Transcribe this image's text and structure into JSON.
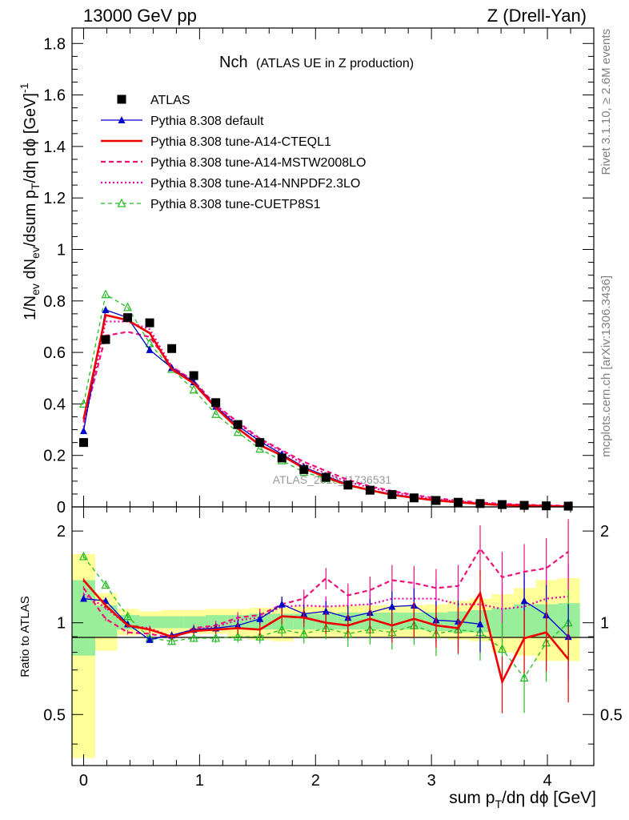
{
  "header": {
    "left": "13000 GeV pp",
    "right": "Z (Drell-Yan)"
  },
  "side_labels": {
    "rivet": "Rivet 3.1.10, ≥ 2.6M events",
    "mcplots": "mcplots.cern.ch [arXiv:1306.3436]"
  },
  "colors": {
    "data": "#000000",
    "default": "#0000cc",
    "cteql1": "#ee0000",
    "mstw": "#ee1177",
    "nnpdf": "#ee00aa",
    "cuetp": "#22bb22",
    "band_inner": "#99ee99",
    "band_outer": "#ffff99"
  },
  "chart_data": [
    {
      "type": "line",
      "title": "Nch",
      "subtitle": "(ATLAS UE in Z production)",
      "ylabel": "1/N_ev dN_ev/dsum p_T/dη dϕ [GeV]^-1",
      "xlabel": "sum p_T/dη dϕ [GeV]",
      "watermark": "ATLAS_2019_I1736531",
      "xlim": [
        -0.1,
        4.4
      ],
      "ylim": [
        0,
        1.86
      ],
      "yticks": [
        "0",
        "0.2",
        "0.4",
        "0.6",
        "0.8",
        "1",
        "1.2",
        "1.4",
        "1.6",
        "1.8"
      ],
      "xticks": [
        "0",
        "1",
        "2",
        "3",
        "4"
      ],
      "legend_position": "top-left",
      "x": [
        0,
        0.19,
        0.38,
        0.57,
        0.76,
        0.95,
        1.14,
        1.33,
        1.52,
        1.71,
        1.9,
        2.09,
        2.28,
        2.47,
        2.66,
        2.85,
        3.04,
        3.23,
        3.42,
        3.61,
        3.8,
        3.99,
        4.18
      ],
      "series": [
        {
          "name": "ATLAS",
          "key": "data",
          "values": [
            0.25,
            0.65,
            0.735,
            0.715,
            0.615,
            0.51,
            0.405,
            0.32,
            0.25,
            0.19,
            0.145,
            0.115,
            0.085,
            0.065,
            0.048,
            0.035,
            0.025,
            0.018,
            0.013,
            0.009,
            0.006,
            0.004,
            0.003
          ]
        },
        {
          "name": "Pythia 8.308 default",
          "key": "default",
          "values": [
            0.295,
            0.765,
            0.735,
            0.61,
            0.54,
            0.485,
            0.39,
            0.315,
            0.255,
            0.205,
            0.155,
            0.12,
            0.088,
            0.066,
            0.05,
            0.037,
            0.024,
            0.016,
            0.011,
            0.008,
            0.005,
            0.003,
            0.002
          ]
        },
        {
          "name": "Pythia 8.308 tune-A14-CTEQL1",
          "key": "cteql1",
          "values": [
            0.34,
            0.745,
            0.725,
            0.675,
            0.535,
            0.48,
            0.385,
            0.305,
            0.24,
            0.2,
            0.15,
            0.115,
            0.085,
            0.065,
            0.047,
            0.035,
            0.025,
            0.018,
            0.012,
            0.007,
            0.005,
            0.003,
            0.002
          ]
        },
        {
          "name": "Pythia 8.308 tune-A14-MSTW2008LO",
          "key": "mstw",
          "values": [
            0.33,
            0.665,
            0.68,
            0.66,
            0.545,
            0.49,
            0.395,
            0.33,
            0.265,
            0.22,
            0.175,
            0.14,
            0.105,
            0.08,
            0.062,
            0.046,
            0.034,
            0.024,
            0.017,
            0.012,
            0.008,
            0.006,
            0.004
          ]
        },
        {
          "name": "Pythia 8.308 tune-A14-NNPDF2.3LO",
          "key": "nnpdf",
          "values": [
            0.31,
            0.72,
            0.72,
            0.69,
            0.545,
            0.485,
            0.39,
            0.325,
            0.26,
            0.215,
            0.165,
            0.13,
            0.097,
            0.075,
            0.058,
            0.042,
            0.03,
            0.021,
            0.015,
            0.01,
            0.007,
            0.005,
            0.003
          ]
        },
        {
          "name": "Pythia 8.308 tune-CUETP8S1",
          "key": "cuetp",
          "values": [
            0.4,
            0.825,
            0.775,
            0.635,
            0.535,
            0.455,
            0.36,
            0.29,
            0.225,
            0.18,
            0.135,
            0.11,
            0.082,
            0.062,
            0.045,
            0.035,
            0.023,
            0.017,
            0.012,
            0.007,
            0.004,
            0.003,
            0.002
          ]
        }
      ]
    },
    {
      "type": "line",
      "ylabel": "Ratio to ATLAS",
      "xlim": [
        -0.1,
        4.4
      ],
      "ylim": [
        0.34,
        2.4
      ],
      "yticks": [
        "0.5",
        "1",
        "2"
      ],
      "x": [
        0,
        0.19,
        0.38,
        0.57,
        0.76,
        0.95,
        1.14,
        1.33,
        1.52,
        1.71,
        1.9,
        2.09,
        2.28,
        2.47,
        2.66,
        2.85,
        3.04,
        3.23,
        3.42,
        3.61,
        3.8,
        3.99,
        4.18
      ],
      "bands": {
        "edges": [
          -0.1,
          0.1,
          0.29,
          0.48,
          0.67,
          0.86,
          1.05,
          1.24,
          1.43,
          1.62,
          1.81,
          2.0,
          2.19,
          2.38,
          2.57,
          2.76,
          2.95,
          3.14,
          3.33,
          3.52,
          3.71,
          3.9,
          4.09,
          4.28
        ],
        "inner_lo": [
          0.78,
          0.9,
          0.95,
          0.96,
          0.96,
          0.96,
          0.96,
          0.96,
          0.95,
          0.95,
          0.95,
          0.95,
          0.95,
          0.95,
          0.95,
          0.95,
          0.94,
          0.93,
          0.93,
          0.9,
          0.9,
          0.9,
          0.9
        ],
        "inner_hi": [
          1.38,
          1.14,
          1.06,
          1.05,
          1.05,
          1.05,
          1.06,
          1.06,
          1.07,
          1.07,
          1.07,
          1.07,
          1.08,
          1.08,
          1.08,
          1.08,
          1.08,
          1.09,
          1.1,
          1.12,
          1.15,
          1.15,
          1.16
        ],
        "outer_lo": [
          0.36,
          0.81,
          0.91,
          0.92,
          0.92,
          0.92,
          0.92,
          0.89,
          0.88,
          0.87,
          0.89,
          0.89,
          0.9,
          0.9,
          0.9,
          0.9,
          0.89,
          0.88,
          0.87,
          0.8,
          0.78,
          0.75,
          0.75
        ],
        "outer_hi": [
          1.68,
          1.25,
          1.11,
          1.09,
          1.1,
          1.1,
          1.11,
          1.11,
          1.12,
          1.12,
          1.13,
          1.13,
          1.14,
          1.14,
          1.14,
          1.14,
          1.15,
          1.18,
          1.2,
          1.24,
          1.3,
          1.38,
          1.4
        ]
      },
      "series": [
        {
          "name": "Pythia 8.308 default",
          "key": "default",
          "values": [
            1.2,
            1.18,
            0.99,
            0.88,
            0.91,
            0.95,
            0.96,
            0.98,
            1.03,
            1.15,
            1.07,
            1.09,
            1.04,
            1.08,
            1.13,
            1.14,
            1.02,
            1.01,
            0.99,
            null,
            1.18,
            1.06,
            0.9
          ]
        },
        {
          "name": "Pythia 8.308 tune-A14-CTEQL1",
          "key": "cteql1",
          "values": [
            1.38,
            1.14,
            0.98,
            0.95,
            0.9,
            0.94,
            0.95,
            0.96,
            0.95,
            1.05,
            1.04,
            1.0,
            0.98,
            1.03,
            0.98,
            1.03,
            0.98,
            0.96,
            1.25,
            0.64,
            0.89,
            0.93,
            0.76
          ]
        },
        {
          "name": "Pythia 8.308 tune-A14-MSTW2008LO",
          "key": "mstw",
          "values": [
            1.3,
            1.03,
            0.93,
            0.92,
            0.89,
            0.96,
            0.98,
            1.04,
            1.06,
            1.15,
            1.2,
            1.4,
            1.23,
            1.28,
            1.38,
            1.35,
            1.3,
            1.32,
            1.75,
            1.41,
            1.47,
            1.51,
            1.71
          ]
        },
        {
          "name": "Pythia 8.308 tune-A14-NNPDF2.3LO",
          "key": "nnpdf",
          "values": [
            1.24,
            1.12,
            0.98,
            0.96,
            0.9,
            0.95,
            0.97,
            1.02,
            1.04,
            1.13,
            1.14,
            1.13,
            1.14,
            1.15,
            1.2,
            1.2,
            1.2,
            1.15,
            1.15,
            1.11,
            1.13,
            1.2,
            1.22
          ]
        },
        {
          "name": "Pythia 8.308 tune-CUETP8S1",
          "key": "cuetp",
          "values": [
            1.65,
            1.33,
            1.05,
            0.89,
            0.87,
            0.89,
            0.89,
            0.9,
            0.9,
            0.95,
            0.92,
            0.96,
            0.92,
            0.95,
            0.93,
            0.98,
            0.92,
            0.95,
            0.93,
            0.82,
            0.66,
            0.86,
            1.0
          ]
        }
      ]
    }
  ]
}
